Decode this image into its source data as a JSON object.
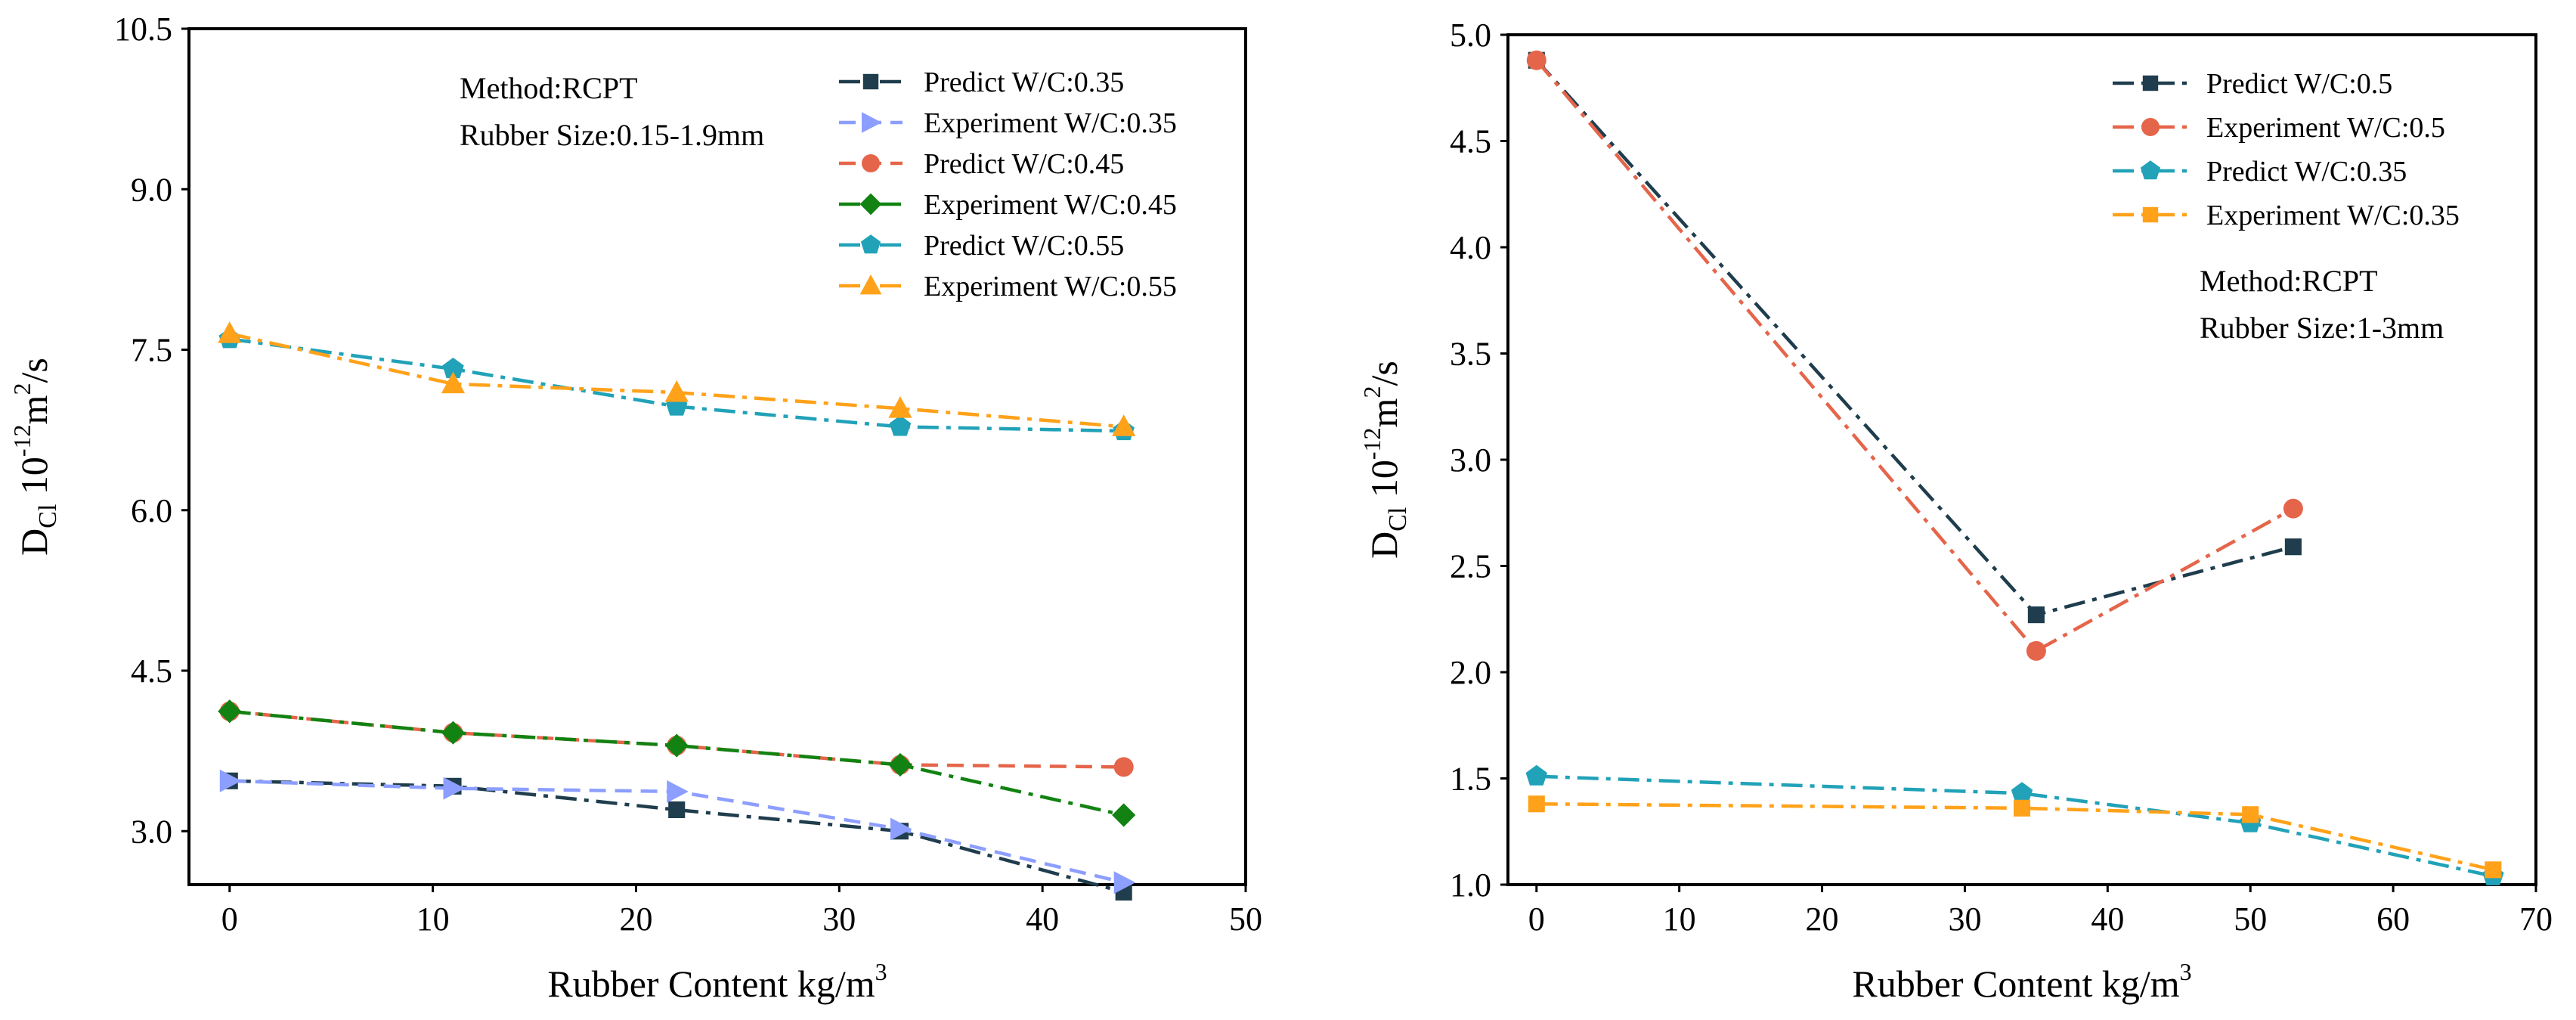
{
  "chart_data": [
    {
      "type": "line",
      "title": "",
      "xlabel": "Rubber Content kg/m",
      "xlabel_sup": "3",
      "ylabel": "D",
      "ylabel_sub": "Cl",
      "ylabel_unit_base": "10",
      "ylabel_unit_exp": "-12",
      "ylabel_unit_m": "m",
      "ylabel_unit_m_exp": "2",
      "ylabel_unit_tail": "/s",
      "xlim": [
        -2,
        50
      ],
      "ylim": [
        2.5,
        10.5
      ],
      "xticks": [
        0,
        10,
        20,
        30,
        40,
        50
      ],
      "yticks": [
        3.0,
        4.5,
        6.0,
        7.5,
        9.0,
        10.5
      ],
      "ytick_labels": [
        "3.0",
        "4.5",
        "6.0",
        "7.5",
        "9.0",
        "10.5"
      ],
      "grid": false,
      "legend_position": "top-right",
      "annotations": [
        "Method:RCPT",
        "Rubber Size:0.15-1.9mm"
      ],
      "series": [
        {
          "name": "Predict W/C:0.35",
          "color": "#1f3d4d",
          "marker": "square",
          "dash": "dashdot",
          "x": [
            0,
            11,
            22,
            33,
            44
          ],
          "y": [
            3.47,
            3.42,
            3.2,
            3.0,
            2.43
          ]
        },
        {
          "name": "Experiment W/C:0.35",
          "color": "#8c9eff",
          "marker": "triangle-right",
          "dash": "dash",
          "x": [
            0,
            11,
            22,
            33,
            44
          ],
          "y": [
            3.47,
            3.4,
            3.37,
            3.02,
            2.52
          ]
        },
        {
          "name": "Predict W/C:0.45",
          "color": "#e5654a",
          "marker": "circle",
          "dash": "dash",
          "x": [
            0,
            11,
            22,
            33,
            44
          ],
          "y": [
            4.12,
            3.92,
            3.8,
            3.62,
            3.6
          ]
        },
        {
          "name": "Experiment W/C:0.45",
          "color": "#128212",
          "marker": "diamond",
          "dash": "dashdot",
          "x": [
            0,
            11,
            22,
            33,
            44
          ],
          "y": [
            4.12,
            3.92,
            3.8,
            3.62,
            3.15
          ]
        },
        {
          "name": "Predict W/C:0.55",
          "color": "#21a2b8",
          "marker": "pentagon",
          "dash": "dashdot",
          "x": [
            0,
            11,
            22,
            33,
            44
          ],
          "y": [
            7.6,
            7.32,
            6.97,
            6.78,
            6.74
          ]
        },
        {
          "name": "Experiment W/C:0.55",
          "color": "#ffa21a",
          "marker": "triangle-up",
          "dash": "dashdot",
          "x": [
            0,
            11,
            22,
            33,
            44
          ],
          "y": [
            7.65,
            7.18,
            7.1,
            6.95,
            6.78
          ]
        }
      ]
    },
    {
      "type": "line",
      "title": "",
      "xlabel": "Rubber Content kg/m",
      "xlabel_sup": "3",
      "ylabel": "D",
      "ylabel_sub": "Cl",
      "ylabel_unit_base": "10",
      "ylabel_unit_exp": "-12",
      "ylabel_unit_m": "m",
      "ylabel_unit_m_exp": "2",
      "ylabel_unit_tail": "/s",
      "xlim": [
        -2,
        70
      ],
      "ylim": [
        1.0,
        5.0
      ],
      "xticks": [
        0,
        10,
        20,
        30,
        40,
        50,
        60,
        70
      ],
      "yticks": [
        1.0,
        1.5,
        2.0,
        2.5,
        3.0,
        3.5,
        4.0,
        4.5,
        5.0
      ],
      "ytick_labels": [
        "1.0",
        "1.5",
        "2.0",
        "2.5",
        "3.0",
        "3.5",
        "4.0",
        "4.5",
        "5.0"
      ],
      "grid": false,
      "legend_position": "top-right",
      "annotations": [
        "Method:RCPT",
        "Rubber Size:1-3mm"
      ],
      "series": [
        {
          "name": "Predict W/C:0.5",
          "color": "#1f3d4d",
          "marker": "square",
          "dash": "dashdot",
          "x": [
            0,
            35,
            53
          ],
          "y": [
            4.88,
            2.27,
            2.59
          ]
        },
        {
          "name": "Experiment W/C:0.5",
          "color": "#e5654a",
          "marker": "circle",
          "dash": "dashdot",
          "x": [
            0,
            35,
            53
          ],
          "y": [
            4.88,
            2.1,
            2.77
          ]
        },
        {
          "name": "Predict W/C:0.35",
          "color": "#21a2b8",
          "marker": "pentagon",
          "dash": "dashdot",
          "x": [
            0,
            34,
            50,
            67
          ],
          "y": [
            1.51,
            1.43,
            1.29,
            1.04
          ]
        },
        {
          "name": "Experiment W/C:0.35",
          "color": "#ffa21a",
          "marker": "square",
          "dash": "dashdot",
          "x": [
            0,
            34,
            50,
            67
          ],
          "y": [
            1.38,
            1.36,
            1.33,
            1.07
          ]
        }
      ]
    }
  ]
}
